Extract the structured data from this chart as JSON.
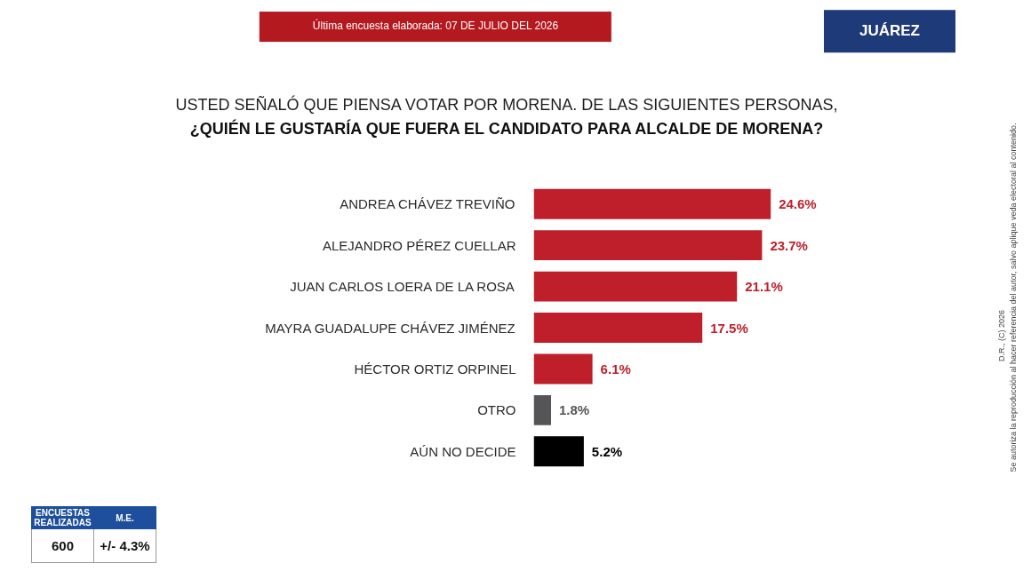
{
  "chart_data": {
    "type": "bar",
    "orientation": "horizontal",
    "title": "USTED SEÑALÓ QUE PIENSA VOTAR POR MORENA. DE LAS SIGUIENTES PERSONAS,",
    "subtitle": "¿QUIÉN LE GUSTARÍA QUE FUERA EL CANDIDATO PARA ALCALDE DE MORENA?",
    "categories": [
      "ANDREA CHÁVEZ TREVIÑO",
      "ALEJANDRO PÉREZ CUELLAR",
      "JUAN CARLOS LOERA DE LA ROSA",
      "MAYRA GUADALUPE CHÁVEZ JIMÉNEZ",
      "HÉCTOR ORTIZ ORPINEL",
      "OTRO",
      "AÚN NO DECIDE"
    ],
    "values": [
      24.6,
      23.7,
      21.1,
      17.5,
      6.1,
      1.8,
      5.2
    ],
    "colors": [
      "#bf1f2b",
      "#bf1f2b",
      "#bf1f2b",
      "#bf1f2b",
      "#bf1f2b",
      "#555558",
      "#000000"
    ],
    "value_labels": [
      "24.6%",
      "23.7%",
      "21.1%",
      "17.5%",
      "6.1%",
      "1.8%",
      "5.2%"
    ],
    "annotations": [
      "Última encuesta elaborada: 07 DE JULIO DEL 2026",
      "JUÁREZ",
      "D.R., (C) 2026",
      "Se autoriza la reproducción al hacer referencia del autor, salvo aplique veda electoral al contenido.",
      "ENCUESTAS REALIZADAS",
      "M.E.",
      "600",
      "+/- 4.3%"
    ]
  }
}
